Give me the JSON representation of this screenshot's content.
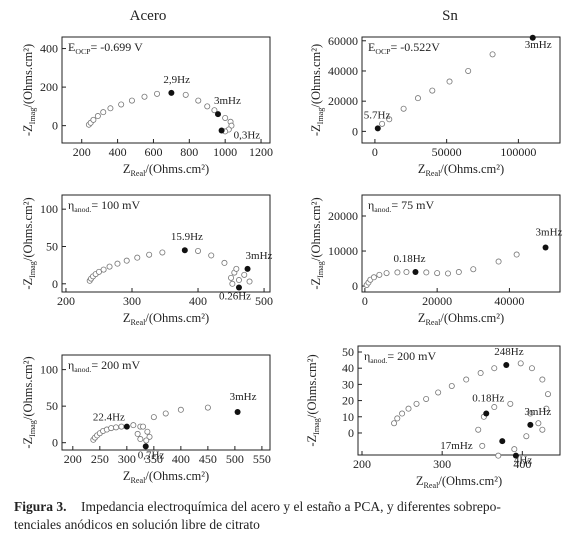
{
  "column_titles": [
    "Acero",
    "Sn"
  ],
  "chart_data": [
    {
      "type": "scatter",
      "annotation": {
        "main": "E",
        "sub": "OCP",
        "rest": "= -0.699 V"
      },
      "xlabel": {
        "main": "Z",
        "sub": "Real",
        "rest": "/(Ohms.cm²)"
      },
      "ylabel": {
        "main": "-Z",
        "sub": "Imag",
        "rest": "/(Ohms.cm²)"
      },
      "xlim": [
        90,
        1250
      ],
      "ylim": [
        -90,
        460
      ],
      "xticks": [
        200,
        400,
        600,
        800,
        1000,
        1200
      ],
      "yticks": [
        0,
        200,
        400
      ],
      "points": {
        "x": [
          240,
          250,
          265,
          290,
          320,
          360,
          420,
          480,
          550,
          620,
          780,
          850,
          900,
          940,
          1000,
          1030,
          1035,
          1020,
          1000
        ],
        "y": [
          5,
          15,
          30,
          50,
          70,
          90,
          110,
          130,
          150,
          165,
          160,
          130,
          100,
          80,
          40,
          20,
          0,
          -20,
          -30
        ]
      },
      "highlights": [
        {
          "label": "2,9Hz",
          "x": 700,
          "y": 170
        },
        {
          "label": "3mHz",
          "x": 960,
          "y": 60
        },
        {
          "label": "0,3Hz",
          "x": 980,
          "y": -25
        }
      ]
    },
    {
      "type": "scatter",
      "annotation": {
        "main": "E",
        "sub": "OCP",
        "rest": "= -0.522V"
      },
      "xlabel": {
        "main": "Z",
        "sub": "Real",
        "rest": "/(Ohms.cm²)"
      },
      "ylabel": {
        "main": "-Z",
        "sub": "Imag",
        "rest": "/(Ohms.cm²)"
      },
      "xlim": [
        -9000,
        129000
      ],
      "ylim": [
        -7700,
        62500
      ],
      "xticks": [
        0,
        50000,
        100000
      ],
      "yticks": [
        0,
        20000,
        40000,
        60000
      ],
      "points": {
        "x": [
          5000,
          10000,
          20000,
          30000,
          40000,
          52000,
          65000,
          82000
        ],
        "y": [
          5000,
          8000,
          15000,
          22000,
          27000,
          33000,
          40000,
          51000
        ]
      },
      "highlights": [
        {
          "label": "5.7Hz",
          "x": 2000,
          "y": 2000
        },
        {
          "label": "3mHz",
          "x": 110000,
          "y": 62000
        }
      ]
    },
    {
      "type": "scatter",
      "annotation": {
        "main": "η",
        "sub": "anod.",
        "rest": "= 100 mV"
      },
      "xlabel": {
        "main": "Z",
        "sub": "Real",
        "rest": "/(Ohms.cm²)"
      },
      "ylabel": {
        "main": "-Z",
        "sub": "Imag",
        "rest": "/(Ohms.cm²)"
      },
      "xlim": [
        194,
        509
      ],
      "ylim": [
        -11,
        119
      ],
      "xticks": [
        200,
        300,
        400,
        500
      ],
      "yticks": [
        0,
        50,
        100
      ],
      "points": {
        "x": [
          236,
          238,
          241,
          245,
          250,
          257,
          266,
          278,
          292,
          308,
          326,
          346,
          400,
          420,
          440,
          455,
          462,
          452,
          450,
          458,
          470,
          478
        ],
        "y": [
          4,
          7,
          10,
          13,
          16,
          19,
          23,
          27,
          31,
          35,
          39,
          42,
          44,
          38,
          28,
          15,
          5,
          0,
          8,
          20,
          12,
          3
        ]
      },
      "highlights": [
        {
          "label": "15.9Hz",
          "x": 380,
          "y": 45
        },
        {
          "label": "3mHz",
          "x": 475,
          "y": 20
        },
        {
          "label": "0.26Hz",
          "x": 462,
          "y": -5
        }
      ]
    },
    {
      "type": "scatter",
      "annotation": {
        "main": "η",
        "sub": "anod.",
        "rest": "= 75 mV"
      },
      "xlabel": {
        "main": "Z",
        "sub": "Real",
        "rest": "/(Ohms.cm²)"
      },
      "ylabel": {
        "main": "-Z",
        "sub": "Imag",
        "rest": "/(Ohms.cm²)"
      },
      "xlim": [
        -800,
        54000
      ],
      "ylim": [
        -1700,
        26000
      ],
      "xticks": [
        0,
        20000,
        40000
      ],
      "yticks": [
        0,
        10000,
        20000
      ],
      "points": {
        "x": [
          500,
          1000,
          1500,
          2500,
          4000,
          6000,
          9000,
          11500,
          17000,
          20000,
          23000,
          26000,
          30000,
          37000,
          42000
        ],
        "y": [
          300,
          1000,
          1800,
          2500,
          3200,
          3700,
          3900,
          4000,
          3900,
          3700,
          3600,
          4000,
          4800,
          7000,
          9000
        ]
      },
      "highlights": [
        {
          "label": "0.18Hz",
          "x": 14000,
          "y": 4000
        },
        {
          "label": "3mHz",
          "x": 50000,
          "y": 11000
        }
      ]
    },
    {
      "type": "scatter",
      "annotation": {
        "main": "η",
        "sub": "anod.",
        "rest": "= 200 mV"
      },
      "xlabel": {
        "main": "Z",
        "sub": "Real",
        "rest": "/(Ohms.cm²)"
      },
      "ylabel": {
        "main": "-Z",
        "sub": "Imag",
        "rest": "/(Ohms.cm²)"
      },
      "xlim": [
        180,
        565
      ],
      "ylim": [
        -10,
        120
      ],
      "xticks": [
        200,
        250,
        300,
        350,
        400,
        450,
        500,
        550
      ],
      "yticks": [
        0,
        50,
        100
      ],
      "points": {
        "x": [
          238,
          241,
          245,
          250,
          256,
          263,
          271,
          280,
          290,
          312,
          325,
          338,
          342,
          336,
          325,
          320,
          330,
          350,
          372,
          400,
          450
        ],
        "y": [
          4,
          7,
          10,
          13,
          16,
          18,
          20,
          21,
          22,
          24,
          22,
          15,
          8,
          3,
          5,
          12,
          22,
          35,
          40,
          45,
          48
        ]
      },
      "highlights": [
        {
          "label": "22.4Hz",
          "x": 300,
          "y": 22
        },
        {
          "label": "0,7Hz",
          "x": 335,
          "y": -5
        },
        {
          "label": "3mHz",
          "x": 505,
          "y": 42
        }
      ]
    },
    {
      "type": "scatter",
      "annotation": {
        "main": "η",
        "sub": "anod.",
        "rest": "= 200 mV"
      },
      "xlabel": {
        "main": "Z",
        "sub": "Real",
        "rest": "/(Ohms.cm²)"
      },
      "ylabel": {
        "main": "-Z",
        "sub": "Imag",
        "rest": "/(Ohms.cm²)"
      },
      "xlim": [
        195,
        447
      ],
      "ylim": [
        -13.6,
        53.7
      ],
      "xticks": [
        200,
        300,
        400
      ],
      "yticks": [
        0,
        10,
        20,
        30,
        40,
        50
      ],
      "points": {
        "x": [
          240,
          244,
          250,
          258,
          268,
          280,
          295,
          312,
          330,
          348,
          365,
          398,
          412,
          425,
          432,
          430,
          420,
          405,
          390,
          370,
          350,
          345,
          352,
          365,
          385,
          410,
          425
        ],
        "y": [
          6,
          9,
          12,
          15,
          18,
          21,
          25,
          29,
          33,
          37,
          40,
          43,
          40,
          33,
          24,
          15,
          6,
          -2,
          -10,
          -14,
          -8,
          2,
          10,
          16,
          18,
          12,
          2
        ]
      },
      "highlights": [
        {
          "label": "248Hz",
          "x": 380,
          "y": 42
        },
        {
          "label": "0.18Hz",
          "x": 355,
          "y": 12
        },
        {
          "label": "17mHz",
          "x": 375,
          "y": -5
        },
        {
          "label": "4Hz",
          "x": 392,
          "y": -14
        },
        {
          "label": "3mHz",
          "x": 410,
          "y": 5
        }
      ]
    }
  ],
  "caption": {
    "label": "Figura 3.",
    "lines": [
      "Impedancia electroquímica del acero y el estaño a PCA, y diferentes sobrepo-",
      "tenciales anódicos en solución libre de citrato"
    ]
  }
}
